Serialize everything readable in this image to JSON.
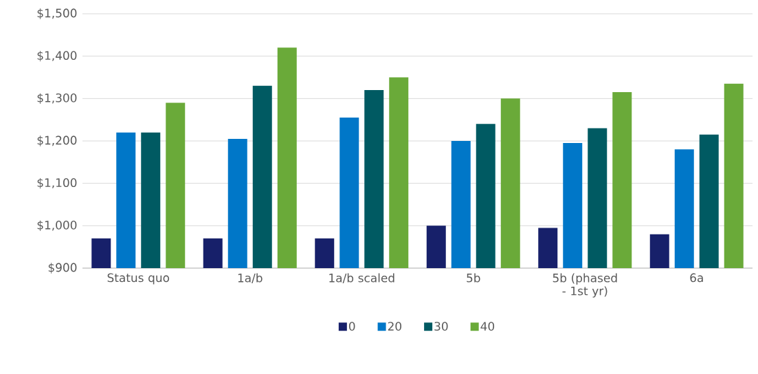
{
  "chart_data": {
    "type": "bar",
    "categories": [
      "Status quo",
      "1a/b",
      "1a/b scaled",
      "5b",
      "5b (phased - 1st yr)",
      "6a"
    ],
    "series": [
      {
        "name": "0",
        "color": "#17206a",
        "values": [
          970,
          970,
          970,
          1000,
          995,
          980
        ]
      },
      {
        "name": "20",
        "color": "#0077c8",
        "values": [
          1220,
          1205,
          1255,
          1200,
          1195,
          1180
        ]
      },
      {
        "name": "30",
        "color": "#005a62",
        "values": [
          1220,
          1330,
          1320,
          1240,
          1230,
          1215
        ]
      },
      {
        "name": "40",
        "color": "#6aaa39",
        "values": [
          1290,
          1420,
          1350,
          1300,
          1315,
          1335
        ]
      }
    ],
    "ylim": [
      900,
      1500
    ],
    "yticks": [
      {
        "value": 900,
        "label": "$900"
      },
      {
        "value": 1000,
        "label": "$1,000"
      },
      {
        "value": 1100,
        "label": "$1,100"
      },
      {
        "value": 1200,
        "label": "$1,200"
      },
      {
        "value": 1300,
        "label": "$1,300"
      },
      {
        "value": 1400,
        "label": "$1,400"
      },
      {
        "value": 1500,
        "label": "$1,500"
      }
    ],
    "grid": "y",
    "legend": "bottom"
  }
}
